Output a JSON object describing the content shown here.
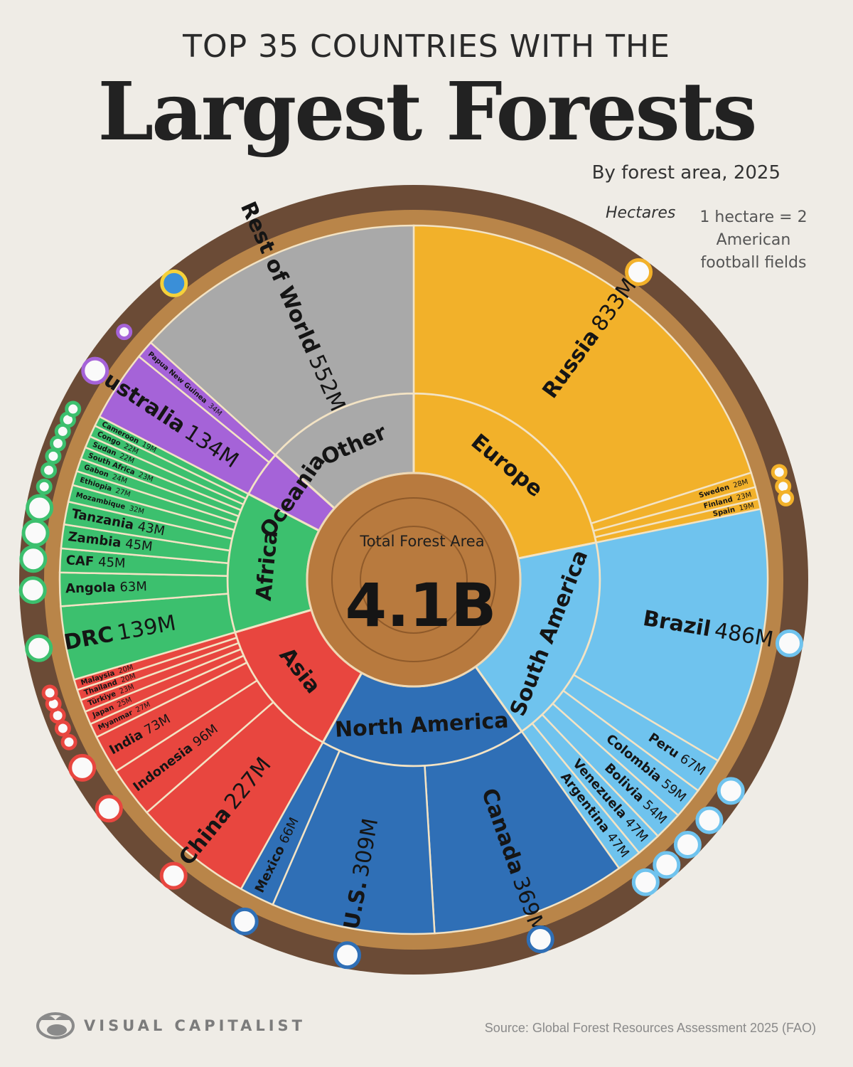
{
  "header": {
    "title_line1": "TOP 35 COUNTRIES WITH THE",
    "title_line2": "Largest Forests",
    "subtitle": "By forest area, 2025",
    "unit_annotation": "Hectares",
    "note": "1 hectare = 2 American football fields"
  },
  "center": {
    "label": "Total Forest Area",
    "value": "4.1B"
  },
  "footer": {
    "logo_text": "VISUAL CAPITALIST",
    "source": "Source: Global Forest Resources Assessment 2025 (FAO)"
  },
  "chart_data": {
    "type": "sunburst",
    "title": "Largest Forests",
    "unit": "M",
    "total": "4.1B",
    "regions": [
      {
        "name": "Europe",
        "color": "#f2b12a",
        "countries": [
          {
            "name": "Russia",
            "value": 833
          },
          {
            "name": "Sweden",
            "value": 28
          },
          {
            "name": "Finland",
            "value": 23
          },
          {
            "name": "Spain",
            "value": 19
          }
        ]
      },
      {
        "name": "South America",
        "color": "#6fc3ee",
        "countries": [
          {
            "name": "Brazil",
            "value": 486
          },
          {
            "name": "Peru",
            "value": 67
          },
          {
            "name": "Colombia",
            "value": 59
          },
          {
            "name": "Bolivia",
            "value": 54
          },
          {
            "name": "Venezuela",
            "value": 47
          },
          {
            "name": "Argentina",
            "value": 47
          }
        ]
      },
      {
        "name": "North America",
        "color": "#2f6fb6",
        "countries": [
          {
            "name": "Canada",
            "value": 369
          },
          {
            "name": "U.S.",
            "value": 309
          },
          {
            "name": "Mexico",
            "value": 66
          }
        ]
      },
      {
        "name": "Asia",
        "color": "#e8463f",
        "countries": [
          {
            "name": "China",
            "value": 227
          },
          {
            "name": "Indonesia",
            "value": 96
          },
          {
            "name": "India",
            "value": 73
          },
          {
            "name": "Myanmar",
            "value": 27
          },
          {
            "name": "Japan",
            "value": 25
          },
          {
            "name": "Türkiye",
            "value": 23
          },
          {
            "name": "Thailand",
            "value": 20
          },
          {
            "name": "Malaysia",
            "value": 20
          }
        ]
      },
      {
        "name": "Africa",
        "color": "#3cc06e",
        "countries": [
          {
            "name": "DRC",
            "value": 139
          },
          {
            "name": "Angola",
            "value": 63
          },
          {
            "name": "CAF",
            "value": 45
          },
          {
            "name": "Zambia",
            "value": 45
          },
          {
            "name": "Tanzania",
            "value": 43
          },
          {
            "name": "Mozambique",
            "value": 32
          },
          {
            "name": "Ethiopia",
            "value": 27
          },
          {
            "name": "Gabon",
            "value": 24
          },
          {
            "name": "South Africa",
            "value": 23
          },
          {
            "name": "Sudan",
            "value": 22
          },
          {
            "name": "Congo",
            "value": 22
          },
          {
            "name": "Cameroon",
            "value": 19
          }
        ]
      },
      {
        "name": "Oceania",
        "color": "#a563d8",
        "countries": [
          {
            "name": "Australia",
            "value": 134
          },
          {
            "name": "Papua New Guinea",
            "value": 34
          }
        ]
      },
      {
        "name": "Other",
        "color": "#a9a9a9",
        "countries": [
          {
            "name": "Rest of World",
            "value": 552
          }
        ]
      }
    ]
  }
}
